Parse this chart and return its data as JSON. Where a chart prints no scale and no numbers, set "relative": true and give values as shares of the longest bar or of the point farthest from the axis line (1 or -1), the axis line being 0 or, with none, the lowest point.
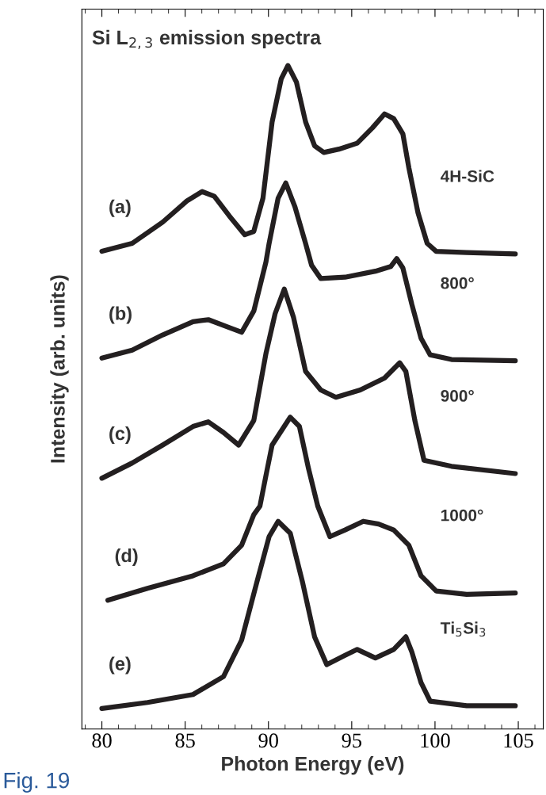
{
  "chart_data": {
    "type": "line",
    "relative": true,
    "title": "Si L$_{2,3}$ emission spectra",
    "xlabel": "Photon Energy (eV)",
    "ylabel": "Intensity (arb. units)",
    "xlim": [
      78.8,
      106.5
    ],
    "xticks": [
      80,
      85,
      90,
      95,
      100,
      105
    ],
    "grid": false,
    "legend": false,
    "tick_labels": "x",
    "marker": "none",
    "line_style": "solid",
    "series": [
      {
        "name": "(a)",
        "color": "#231f20",
        "x": [
          80.0,
          81.82,
          83.65,
          85.11,
          86.02,
          86.75,
          87.66,
          88.58,
          89.12,
          89.67,
          90.22,
          90.77,
          91.17,
          91.68,
          92.23,
          92.77,
          93.32,
          94.23,
          95.33,
          96.24,
          96.97,
          97.52,
          98.07,
          98.43,
          98.98,
          99.53,
          100.07,
          101.9,
          104.82
        ],
        "values": [
          0.72,
          0.732,
          0.764,
          0.796,
          0.81,
          0.803,
          0.773,
          0.745,
          0.75,
          0.8,
          0.915,
          0.98,
          1.0,
          0.975,
          0.915,
          0.879,
          0.869,
          0.874,
          0.883,
          0.906,
          0.927,
          0.92,
          0.897,
          0.846,
          0.778,
          0.732,
          0.72,
          0.718,
          0.716
        ]
      },
      {
        "name": "(b)",
        "color": "#231f20",
        "x": [
          80.0,
          81.82,
          83.65,
          85.47,
          86.39,
          87.66,
          88.39,
          89.12,
          89.85,
          90.04,
          90.58,
          91.04,
          91.59,
          92.23,
          92.59,
          93.14,
          94.6,
          96.42,
          97.34,
          97.7,
          98.07,
          98.61,
          99.16,
          99.71,
          100.99,
          104.82
        ],
        "values": [
          0.559,
          0.571,
          0.594,
          0.614,
          0.617,
          0.605,
          0.598,
          0.63,
          0.704,
          0.732,
          0.8,
          0.823,
          0.787,
          0.732,
          0.699,
          0.679,
          0.681,
          0.69,
          0.697,
          0.709,
          0.695,
          0.64,
          0.589,
          0.564,
          0.557,
          0.555
        ]
      },
      {
        "name": "(c)",
        "color": "#231f20",
        "x": [
          80.0,
          81.82,
          83.65,
          85.47,
          86.39,
          87.3,
          88.21,
          89.12,
          89.85,
          90.4,
          90.95,
          91.5,
          92.23,
          93.14,
          94.05,
          95.51,
          96.97,
          97.88,
          98.25,
          98.79,
          99.34,
          100.99,
          104.82
        ],
        "values": [
          0.378,
          0.401,
          0.428,
          0.456,
          0.463,
          0.447,
          0.428,
          0.465,
          0.566,
          0.626,
          0.663,
          0.621,
          0.539,
          0.511,
          0.5,
          0.511,
          0.529,
          0.552,
          0.539,
          0.465,
          0.405,
          0.396,
          0.385
        ]
      },
      {
        "name": "(d)",
        "color": "#231f20",
        "x": [
          80.36,
          82.74,
          85.47,
          87.3,
          88.39,
          89.12,
          89.49,
          89.85,
          90.22,
          91.31,
          91.86,
          92.41,
          92.96,
          93.69,
          94.6,
          95.69,
          96.61,
          97.52,
          98.43,
          99.16,
          100.07,
          101.9,
          104.82
        ],
        "values": [
          0.194,
          0.212,
          0.231,
          0.249,
          0.277,
          0.323,
          0.336,
          0.382,
          0.428,
          0.47,
          0.456,
          0.392,
          0.336,
          0.29,
          0.3,
          0.313,
          0.309,
          0.3,
          0.277,
          0.231,
          0.208,
          0.203,
          0.205
        ]
      },
      {
        "name": "(e)",
        "color": "#231f20",
        "x": [
          80.0,
          82.74,
          85.47,
          87.3,
          88.39,
          89.31,
          90.04,
          90.58,
          91.31,
          92.04,
          92.77,
          93.5,
          94.6,
          95.33,
          96.42,
          97.52,
          98.25,
          98.61,
          99.16,
          99.71,
          101.9,
          104.82
        ],
        "values": [
          0.031,
          0.04,
          0.052,
          0.079,
          0.134,
          0.222,
          0.29,
          0.313,
          0.295,
          0.222,
          0.139,
          0.097,
          0.111,
          0.12,
          0.107,
          0.12,
          0.139,
          0.116,
          0.07,
          0.042,
          0.035,
          0.035
        ]
      }
    ],
    "annotations": [
      "4H-SiC",
      "800°",
      "900°",
      "1000°",
      "Ti$_{5}$Si$_{3}$",
      "Fig. 19"
    ]
  }
}
